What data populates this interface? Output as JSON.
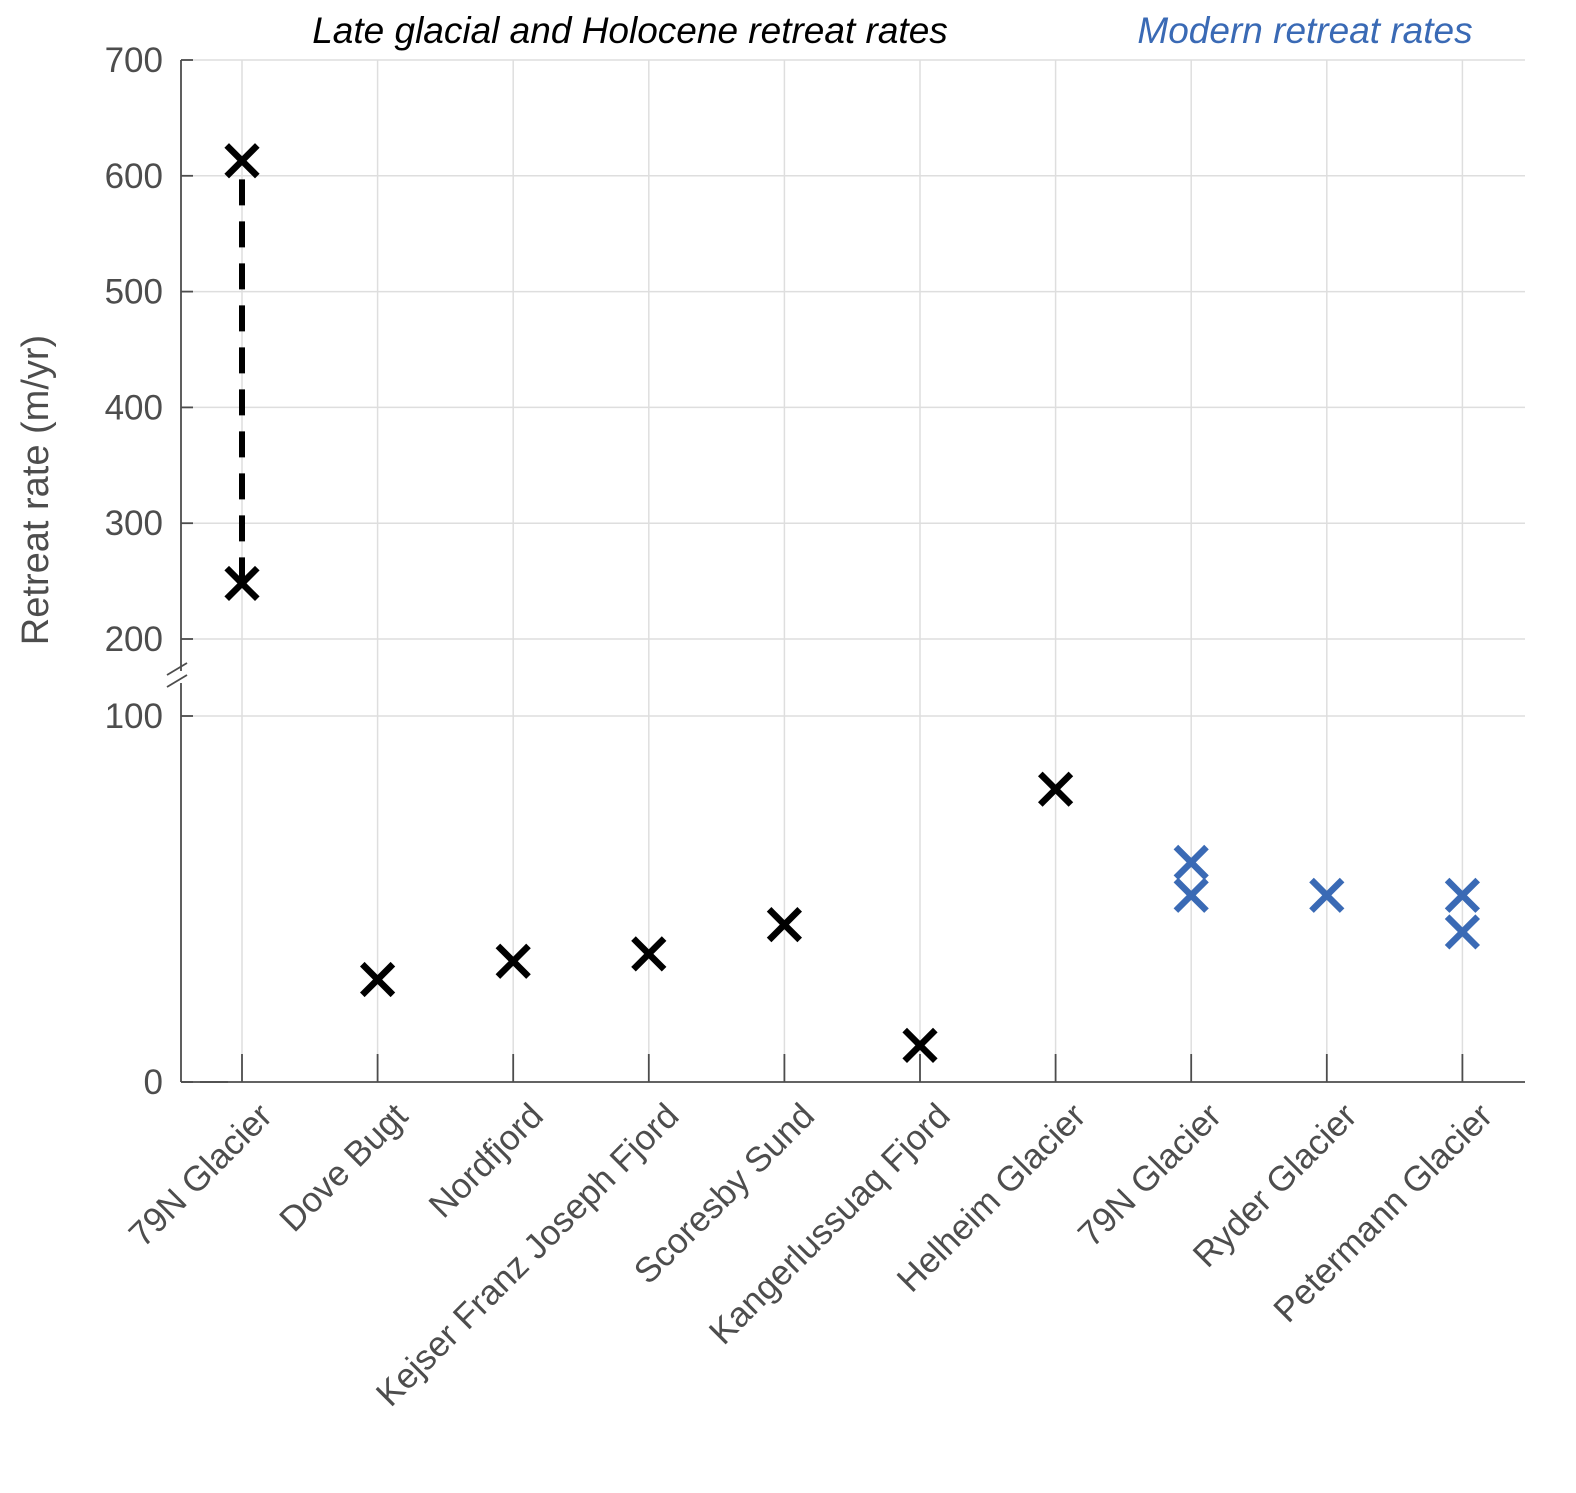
{
  "headers": {
    "left": "Late glacial and Holocene retreat rates",
    "right": "Modern retreat rates"
  },
  "colors": {
    "late_glacial": "#000000",
    "modern": "#3a6ab5",
    "axis": "#4d4d4d",
    "grid": "#dedede"
  },
  "chart_data": {
    "type": "scatter",
    "ylabel": "Retreat rate (m/yr)",
    "categories": [
      "79N Glacier",
      "Dove Bugt",
      "Nordfjord",
      "Kejser Franz Joseph Fjord",
      "Scoresby Sund",
      "Kangerlussuaq Fjord",
      "Helheim Glacier",
      "79N Glacier",
      "Ryder Glacier",
      "Petermann Glacier"
    ],
    "y_ticks": [
      0,
      100,
      200,
      300,
      400,
      500,
      600,
      700
    ],
    "ylim": [
      0,
      700
    ],
    "broken_axis": {
      "lower_range": [
        0,
        100
      ],
      "upper_range": [
        200,
        700
      ]
    },
    "grid": true,
    "series": [
      {
        "name": "Late glacial and Holocene retreat rates",
        "points": [
          {
            "category": 0,
            "value": 613
          },
          {
            "category": 0,
            "value": 248
          },
          {
            "category": 1,
            "value": 28
          },
          {
            "category": 2,
            "value": 33
          },
          {
            "category": 3,
            "value": 35
          },
          {
            "category": 4,
            "value": 43
          },
          {
            "category": 5,
            "value": 10
          },
          {
            "category": 6,
            "value": 80
          }
        ],
        "connectors": [
          {
            "category": 0,
            "from": 248,
            "to": 613,
            "style": "dashed"
          }
        ]
      },
      {
        "name": "Modern retreat rates",
        "points": [
          {
            "category": 7,
            "value": 60
          },
          {
            "category": 7,
            "value": 51
          },
          {
            "category": 8,
            "value": 51
          },
          {
            "category": 9,
            "value": 51
          },
          {
            "category": 9,
            "value": 41
          }
        ]
      }
    ]
  }
}
